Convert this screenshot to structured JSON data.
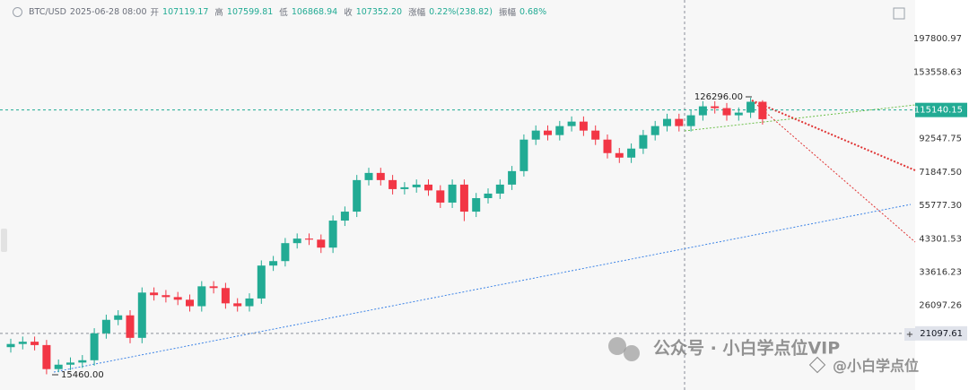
{
  "header": {
    "symbol": "BTC/USD",
    "time": "2025-06-28 08:00",
    "fields": [
      {
        "label": "开",
        "value": "107119.17"
      },
      {
        "label": "高",
        "value": "107599.81"
      },
      {
        "label": "低",
        "value": "106868.94"
      },
      {
        "label": "收",
        "value": "107352.20"
      },
      {
        "label": "涨幅",
        "value": "0.22%(238.82)"
      },
      {
        "label": "振幅",
        "value": "0.68%"
      }
    ]
  },
  "watermark": {
    "main": "公众号 · 小白学点位VIP",
    "handle": "@小白学点位"
  },
  "chart_data": {
    "type": "candlestick",
    "log": true,
    "grid": false,
    "up_color": "#22ab94",
    "down_color": "#f23645",
    "ylim": [
      13720,
      265500
    ],
    "yticks": [
      197800.97,
      153558.63,
      92547.75,
      {
        "value": 71847.5,
        "label": "71847.50"
      },
      {
        "value": 55777.3,
        "label": "55777.30"
      },
      43301.53,
      33616.23,
      26097.26
    ],
    "last_price": {
      "value": 115140.15,
      "label": "115140.15"
    },
    "crosshair_price": 21097.61,
    "annotations": {
      "high": "126296.00",
      "low": "15460.00"
    },
    "open": [
      19000,
      19460,
      19800,
      19300,
      16080,
      16630,
      16900,
      17200,
      21100,
      23380,
      24190,
      20390,
      28760,
      28200,
      27790,
      27240,
      25930,
      30160,
      29770,
      26500,
      25930,
      27500,
      35310,
      36530,
      41870,
      43340,
      43000,
      40470,
      49690,
      53190,
      67590,
      71370,
      67590,
      63120,
      64000,
      65310,
      62500,
      56970,
      65310,
      53190,
      58940,
      61000,
      65310,
      72360,
      91940,
      98450,
      95140,
      101870,
      105410,
      98450,
      91940,
      82980,
      80190,
      85870,
      95140,
      101870,
      107600,
      101870,
      110590,
      118380,
      116760,
      110590,
      112860,
      122540
    ],
    "high": [
      20240,
      20590,
      20590,
      20070,
      17300,
      17580,
      17890,
      21940,
      24320,
      25160,
      25160,
      29910,
      29910,
      29330,
      28900,
      28330,
      31370,
      31370,
      30960,
      27560,
      28600,
      36720,
      37990,
      43540,
      45070,
      45070,
      44720,
      51680,
      55320,
      70290,
      74220,
      74220,
      70290,
      66560,
      67920,
      67920,
      65000,
      67920,
      67920,
      61300,
      63440,
      67920,
      75250,
      95620,
      102390,
      102390,
      105940,
      109630,
      109630,
      102390,
      95620,
      86300,
      89300,
      98950,
      105940,
      111900,
      111900,
      115010,
      123110,
      123110,
      121430,
      117370,
      126296,
      124000
    ],
    "low": [
      18240,
      18680,
      18530,
      15460,
      15700,
      15960,
      16220,
      16510,
      20260,
      22440,
      19570,
      19570,
      27070,
      26680,
      26150,
      24890,
      24890,
      28580,
      25440,
      24890,
      24890,
      26400,
      33900,
      35070,
      40200,
      41280,
      38850,
      38850,
      47700,
      51060,
      64890,
      64890,
      60600,
      60600,
      61440,
      60000,
      54690,
      54690,
      49500,
      51060,
      56580,
      58560,
      62700,
      69470,
      88260,
      91330,
      91330,
      97800,
      94510,
      88260,
      79660,
      76980,
      76980,
      82440,
      91330,
      97800,
      97800,
      97800,
      106170,
      112090,
      106170,
      106170,
      108350,
      103060
    ],
    "close": [
      19460,
      19800,
      19300,
      16080,
      16630,
      16900,
      17200,
      21100,
      23380,
      24190,
      20390,
      28760,
      28200,
      27790,
      27240,
      25930,
      30160,
      29770,
      26500,
      25930,
      27500,
      35310,
      36530,
      41870,
      43340,
      43000,
      40470,
      49690,
      53190,
      67590,
      71370,
      67590,
      63120,
      64000,
      65310,
      62500,
      56970,
      65310,
      53190,
      58940,
      61000,
      65310,
      72360,
      91940,
      98450,
      95140,
      101870,
      105410,
      98450,
      91940,
      82980,
      80190,
      85870,
      95140,
      101870,
      107600,
      101870,
      110590,
      118380,
      116760,
      110590,
      112860,
      122540,
      107352
    ]
  }
}
